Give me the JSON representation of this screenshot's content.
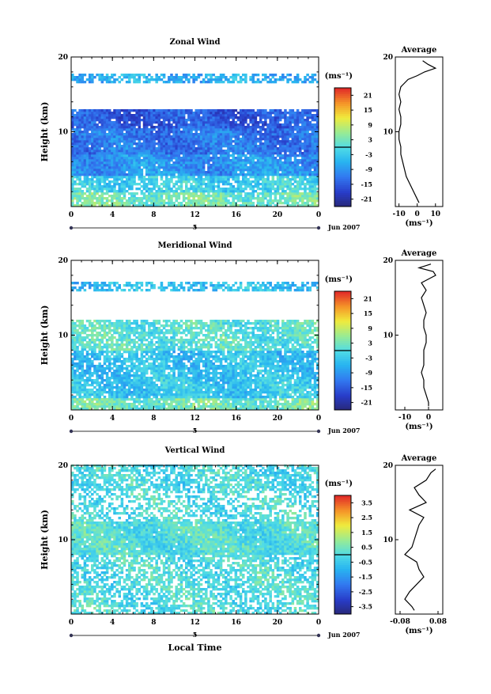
{
  "figure": {
    "date_label": "Jun 2007",
    "date_tick": "5",
    "xlabel_bottom": "Local Time"
  },
  "chart_data": [
    {
      "type": "heatmap",
      "title": "Zonal Wind",
      "xlabel": "",
      "ylabel": "Height (km)",
      "xlim": [
        0,
        24
      ],
      "ylim": [
        0,
        20
      ],
      "x_ticks": [
        "0",
        "4",
        "8",
        "12",
        "16",
        "20",
        "0"
      ],
      "y_ticks": [
        "10",
        "20"
      ],
      "colorbar": {
        "unit": "(ms⁻¹)",
        "ticks": [
          "21",
          "15",
          "9",
          "3",
          "-3",
          "-9",
          "-15",
          "-21"
        ],
        "range": [
          -24,
          24
        ]
      },
      "layers": [
        {
          "z_from": 0.0,
          "z_to": 1.8,
          "value": 3,
          "gaps": 0.15
        },
        {
          "z_from": 1.8,
          "z_to": 4.2,
          "value": -2,
          "gaps": 0.18
        },
        {
          "z_from": 4.2,
          "z_to": 7.0,
          "value": -9,
          "gaps": 0.05
        },
        {
          "z_from": 7.0,
          "z_to": 10.5,
          "value": -12,
          "gaps": 0.03
        },
        {
          "z_from": 10.5,
          "z_to": 13.0,
          "value": -15,
          "gaps": 0.08
        },
        {
          "z_from": 13.0,
          "z_to": 16.5,
          "value": null,
          "gaps": 0.98
        },
        {
          "z_from": 16.5,
          "z_to": 17.8,
          "value": -6,
          "gaps": 0.35
        },
        {
          "z_from": 17.8,
          "z_to": 20.0,
          "value": null,
          "gaps": 1.0
        }
      ],
      "average_profile": {
        "title": "Average",
        "xlabel": "(ms⁻¹)",
        "x_ticks": [
          "-10",
          "0",
          "10"
        ],
        "xlim": [
          -12,
          14
        ],
        "y_ticks": [
          "10",
          "20"
        ],
        "height_km": [
          0.5,
          1,
          2,
          3,
          4,
          5,
          6,
          7,
          8,
          9,
          10,
          11,
          12,
          13,
          14,
          15,
          16,
          17,
          17.5,
          18,
          18.5,
          19,
          19.5
        ],
        "value": [
          1,
          0,
          -2,
          -4,
          -6,
          -7,
          -8,
          -9,
          -9,
          -10,
          -10,
          -9,
          -9,
          -10,
          -9,
          -10,
          -9,
          -5,
          0,
          4,
          10,
          6,
          3
        ]
      }
    },
    {
      "type": "heatmap",
      "title": "Meridional Wind",
      "xlabel": "",
      "ylabel": "Height (km)",
      "xlim": [
        0,
        24
      ],
      "ylim": [
        0,
        20
      ],
      "x_ticks": [
        "0",
        "4",
        "8",
        "12",
        "16",
        "20",
        "0"
      ],
      "y_ticks": [
        "10",
        "20"
      ],
      "colorbar": {
        "unit": "(ms⁻¹)",
        "ticks": [
          "21",
          "15",
          "9",
          "3",
          "-3",
          "-9",
          "-15",
          "-21"
        ],
        "range": [
          -24,
          24
        ]
      },
      "layers": [
        {
          "z_from": 0.0,
          "z_to": 1.5,
          "value": 3,
          "gaps": 0.12
        },
        {
          "z_from": 1.5,
          "z_to": 4.5,
          "value": -3,
          "gaps": 0.12
        },
        {
          "z_from": 4.5,
          "z_to": 8.0,
          "value": -4,
          "gaps": 0.15
        },
        {
          "z_from": 8.0,
          "z_to": 12.0,
          "value": 1,
          "gaps": 0.2
        },
        {
          "z_from": 12.0,
          "z_to": 16.0,
          "value": null,
          "gaps": 0.96
        },
        {
          "z_from": 16.0,
          "z_to": 17.2,
          "value": -4,
          "gaps": 0.35
        },
        {
          "z_from": 17.2,
          "z_to": 20.0,
          "value": null,
          "gaps": 1.0
        }
      ],
      "average_profile": {
        "title": "Average",
        "xlabel": "(ms⁻¹)",
        "x_ticks": [
          "-10",
          "0"
        ],
        "xlim": [
          -14,
          6
        ],
        "y_ticks": [
          "10",
          "20"
        ],
        "height_km": [
          0.5,
          1,
          2,
          3,
          4,
          5,
          6,
          7,
          8,
          9,
          10,
          11,
          12,
          13,
          14,
          15,
          16,
          17,
          17.5,
          18,
          18.5,
          19,
          19.5
        ],
        "value": [
          0,
          0,
          -1,
          -2,
          -2,
          -3,
          -2,
          -2,
          -2,
          -1,
          -1,
          -2,
          -2,
          -1,
          -2,
          -3,
          -1,
          -3,
          0,
          3,
          2,
          -4,
          1
        ]
      }
    },
    {
      "type": "heatmap",
      "title": "Vertical Wind",
      "xlabel": "Local Time",
      "ylabel": "Height (km)",
      "xlim": [
        0,
        24
      ],
      "ylim": [
        0,
        20
      ],
      "x_ticks": [
        "0",
        "4",
        "8",
        "12",
        "16",
        "20",
        "0"
      ],
      "y_ticks": [
        "10",
        "20"
      ],
      "colorbar": {
        "unit": "(ms⁻¹)",
        "ticks": [
          "3.5",
          "2.5",
          "1.5",
          "0.5",
          "-0.5",
          "-1.5",
          "-2.5",
          "-3.5"
        ],
        "range": [
          -4,
          4
        ]
      },
      "layers": [
        {
          "z_from": 0.0,
          "z_to": 8.0,
          "value": 0.0,
          "gaps": 0.35
        },
        {
          "z_from": 8.0,
          "z_to": 12.5,
          "value": 0.1,
          "gaps": 0.04
        },
        {
          "z_from": 12.5,
          "z_to": 16.5,
          "value": 0.0,
          "gaps": 0.5
        },
        {
          "z_from": 16.5,
          "z_to": 20.0,
          "value": -0.1,
          "gaps": 0.3
        }
      ],
      "average_profile": {
        "title": "Average",
        "xlabel": "(ms⁻¹)",
        "x_ticks": [
          "-0.08",
          "0.08"
        ],
        "xlim": [
          -0.1,
          0.1
        ],
        "y_ticks": [
          "10",
          "20"
        ],
        "height_km": [
          0.5,
          1,
          2,
          3,
          4,
          5,
          6,
          7,
          8,
          9,
          10,
          11,
          12,
          13,
          14,
          15,
          16,
          17,
          18,
          19,
          19.5
        ],
        "value": [
          -0.02,
          -0.03,
          -0.06,
          -0.04,
          -0.01,
          0.02,
          0.0,
          -0.01,
          -0.06,
          -0.03,
          -0.02,
          -0.01,
          0.0,
          0.02,
          -0.04,
          0.03,
          0.0,
          -0.02,
          0.03,
          0.05,
          0.07
        ]
      }
    }
  ]
}
